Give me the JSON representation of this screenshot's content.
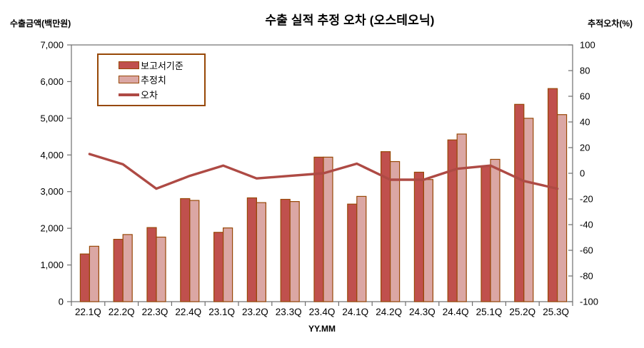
{
  "header": {
    "title": "수출 실적 추정 오차 (오스테오닉)",
    "left_axis_title": "수출금액(백만원)",
    "right_axis_title": "추적오차(%)"
  },
  "legend": {
    "items": [
      {
        "label": "보고서기준",
        "type": "bar",
        "color": "#C0504D"
      },
      {
        "label": "추정치",
        "type": "bar",
        "color": "#DBA7A4"
      },
      {
        "label": "오차",
        "type": "line",
        "color": "#AE4A44"
      }
    ]
  },
  "chart_data": {
    "type": "bar",
    "subtype": "grouped-bars-with-line",
    "title": "수출 실적 추정 오차 (오스테오닉)",
    "xlabel": "YY.MM",
    "ylabel_left": "수출금액(백만원)",
    "ylabel_right": "추적오차(%)",
    "categories": [
      "22.1Q",
      "22.2Q",
      "22.3Q",
      "22.4Q",
      "23.1Q",
      "23.2Q",
      "23.3Q",
      "23.4Q",
      "24.1Q",
      "24.2Q",
      "24.3Q",
      "24.4Q",
      "25.1Q",
      "25.2Q",
      "25.3Q"
    ],
    "series": [
      {
        "name": "보고서기준",
        "type": "bar",
        "axis": "left",
        "color": "#C0504D",
        "values": [
          1300,
          1700,
          2020,
          2810,
          1890,
          2830,
          2790,
          3940,
          2660,
          4090,
          3530,
          4410,
          3690,
          5380,
          5810
        ]
      },
      {
        "name": "추정치",
        "type": "bar",
        "axis": "left",
        "color": "#DBA7A4",
        "values": [
          1510,
          1830,
          1760,
          2760,
          2010,
          2700,
          2730,
          3940,
          2870,
          3820,
          3330,
          4570,
          3880,
          5000,
          5100
        ]
      },
      {
        "name": "오차",
        "type": "line",
        "axis": "right",
        "color": "#AE4A44",
        "values": [
          15,
          7,
          -12,
          -2,
          6,
          -4,
          -2,
          0,
          7.5,
          -5,
          -5,
          3.5,
          6,
          -6,
          -12
        ]
      }
    ],
    "left_axis": {
      "min": 0,
      "max": 7000,
      "step": 1000,
      "tick_labels": [
        "0",
        "1,000",
        "2,000",
        "3,000",
        "4,000",
        "5,000",
        "6,000",
        "7,000"
      ]
    },
    "right_axis": {
      "min": -100,
      "max": 100,
      "step": 20,
      "tick_labels": [
        "-100",
        "-80",
        "-60",
        "-40",
        "-20",
        "0",
        "20",
        "40",
        "60",
        "80",
        "100"
      ]
    },
    "grid": false,
    "legend_position": "top-left-inside"
  },
  "colors": {
    "bar_reported": "#C0504D",
    "bar_estimate": "#DBA7A4",
    "bar_border": "#984807",
    "error_line": "#AE4A44",
    "axis_line": "#6e6e6e",
    "legend_border": "#974806"
  }
}
